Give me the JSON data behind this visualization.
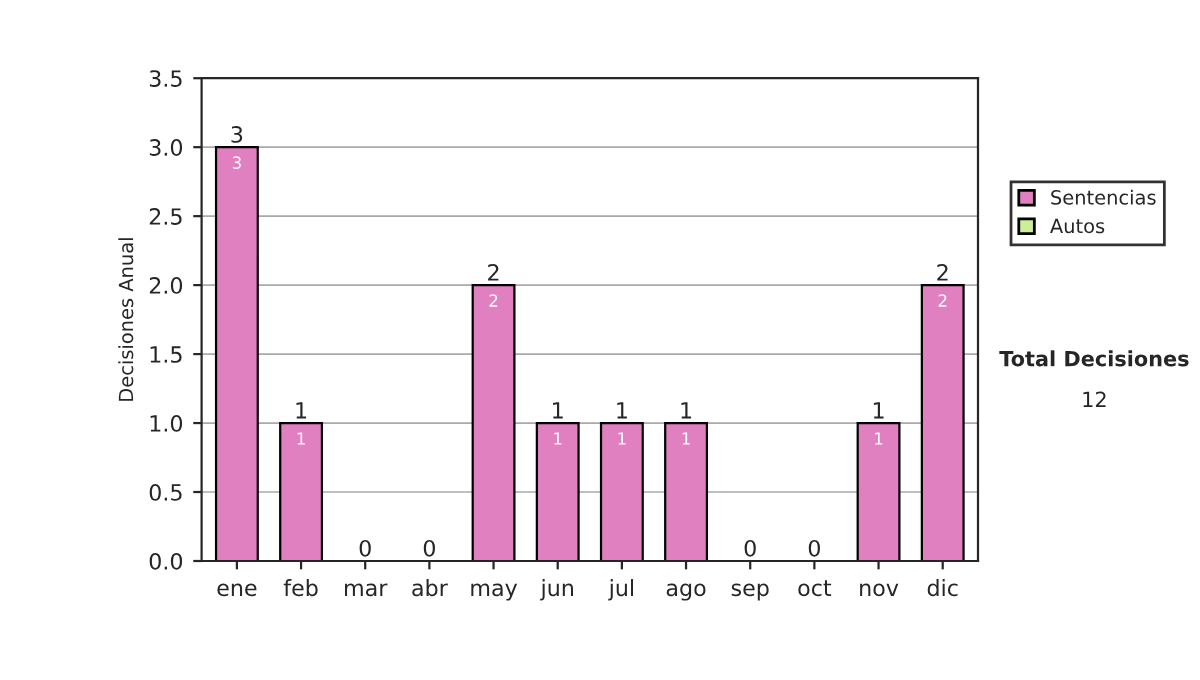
{
  "chart_data": {
    "type": "bar",
    "stacked": true,
    "ylabel": "Decisiones Anual",
    "categories": [
      "ene",
      "feb",
      "mar",
      "abr",
      "may",
      "jun",
      "jul",
      "ago",
      "sep",
      "oct",
      "nov",
      "dic"
    ],
    "series": [
      {
        "name": "Sentencias",
        "color": "#e080c0",
        "values": [
          3,
          1,
          0,
          0,
          2,
          1,
          1,
          1,
          0,
          0,
          1,
          2
        ],
        "value_labels": [
          "3",
          "1",
          null,
          null,
          "2",
          "1",
          "1",
          "1",
          null,
          null,
          "1",
          "2"
        ]
      },
      {
        "name": "Autos",
        "color": "#ccee99",
        "values": [
          0,
          0,
          0,
          0,
          0,
          0,
          0,
          0,
          0,
          0,
          0,
          0
        ]
      }
    ],
    "totals": [
      "3",
      "1",
      "0",
      "0",
      "2",
      "1",
      "1",
      "1",
      "0",
      "0",
      "1",
      "2"
    ],
    "ylim": [
      0,
      3.5
    ],
    "yticks": [
      {
        "value": 0,
        "label": "0.0"
      },
      {
        "value": 0.5,
        "label": "0.5"
      },
      {
        "value": 1,
        "label": "1.0"
      },
      {
        "value": 1.5,
        "label": "1.5"
      },
      {
        "value": 2,
        "label": "2.0"
      },
      {
        "value": 2.5,
        "label": "2.5"
      },
      {
        "value": 3,
        "label": "3.0"
      },
      {
        "value": 3.5,
        "label": "3.5"
      }
    ],
    "grid": "y",
    "legend": "right",
    "annotations": [
      "Total Decisiones",
      "12"
    ]
  }
}
